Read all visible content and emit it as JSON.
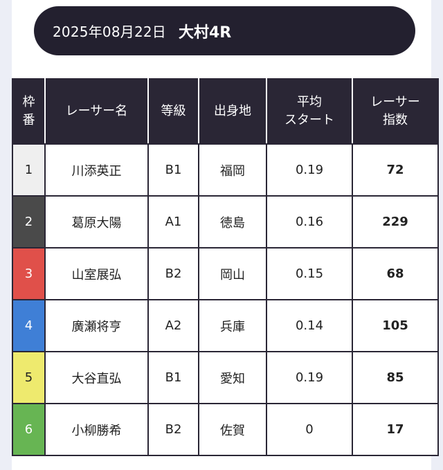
{
  "header": {
    "date": "2025年08月22日",
    "race": "大村4R"
  },
  "table": {
    "columns": [
      {
        "label": "枠\n番"
      },
      {
        "label": "レーサー名"
      },
      {
        "label": "等級"
      },
      {
        "label": "出身地"
      },
      {
        "label": "平均\nスタート"
      },
      {
        "label": "レーサー\n指数"
      }
    ],
    "rows": [
      {
        "waku": "1",
        "name": "川添英正",
        "grade": "B1",
        "origin": "福岡",
        "avg_start": "0.19",
        "index": "72",
        "waku_bg": "#efefef",
        "waku_fg": "#222222"
      },
      {
        "waku": "2",
        "name": "葛原大陽",
        "grade": "A1",
        "origin": "徳島",
        "avg_start": "0.16",
        "index": "229",
        "waku_bg": "#4a4a4a",
        "waku_fg": "#ffffff"
      },
      {
        "waku": "3",
        "name": "山室展弘",
        "grade": "B2",
        "origin": "岡山",
        "avg_start": "0.15",
        "index": "68",
        "waku_bg": "#e0504a",
        "waku_fg": "#ffffff"
      },
      {
        "waku": "4",
        "name": "廣瀬将亨",
        "grade": "A2",
        "origin": "兵庫",
        "avg_start": "0.14",
        "index": "105",
        "waku_bg": "#3f7fd6",
        "waku_fg": "#ffffff"
      },
      {
        "waku": "5",
        "name": "大谷直弘",
        "grade": "B1",
        "origin": "愛知",
        "avg_start": "0.19",
        "index": "85",
        "waku_bg": "#eeea6e",
        "waku_fg": "#222222"
      },
      {
        "waku": "6",
        "name": "小柳勝希",
        "grade": "B2",
        "origin": "佐賀",
        "avg_start": "0",
        "index": "17",
        "waku_bg": "#67b553",
        "waku_fg": "#ffffff"
      }
    ]
  }
}
